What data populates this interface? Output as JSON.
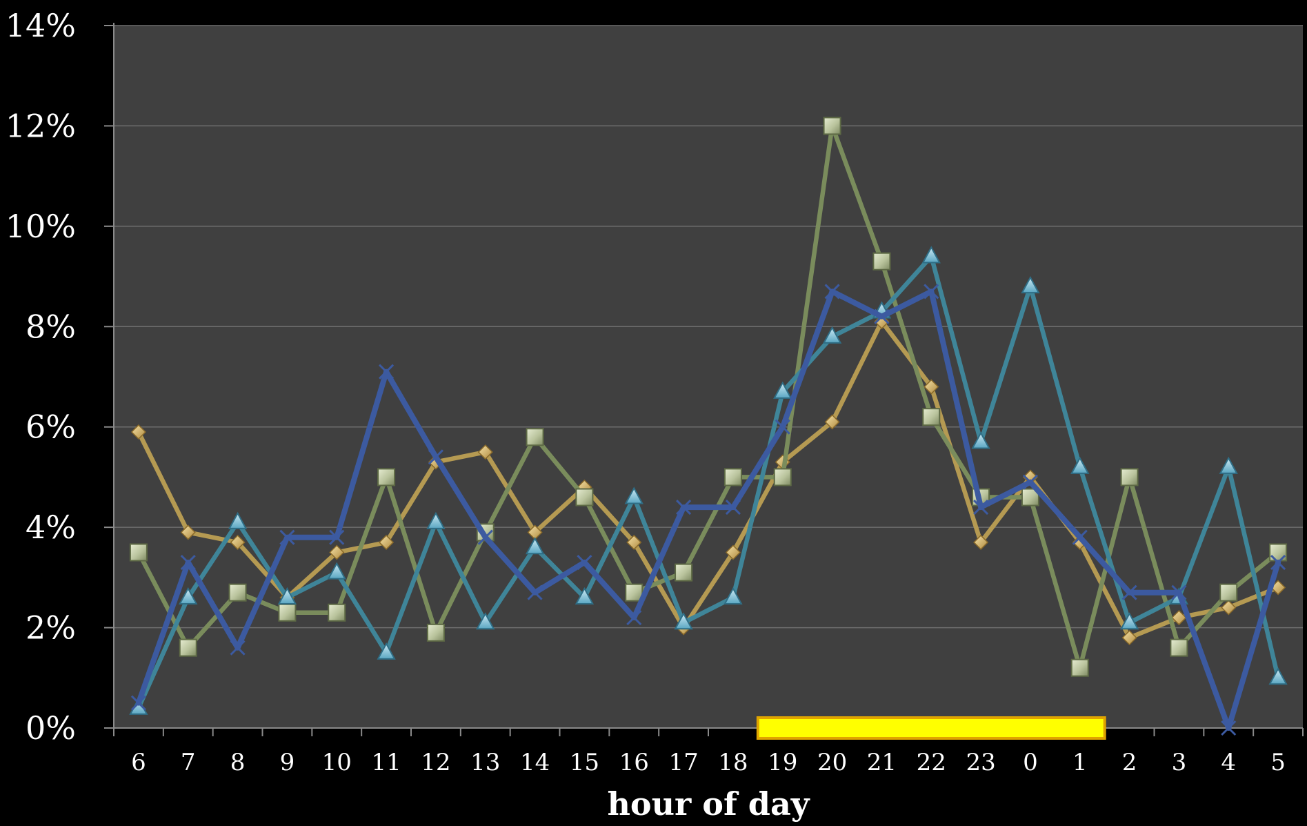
{
  "chart_data": {
    "type": "line",
    "title": "",
    "xlabel": "hour of day",
    "ylabel": "",
    "categories": [
      "6",
      "7",
      "8",
      "9",
      "10",
      "11",
      "12",
      "13",
      "14",
      "15",
      "16",
      "17",
      "18",
      "19",
      "20",
      "21",
      "22",
      "23",
      "0",
      "1",
      "2",
      "3",
      "4",
      "5"
    ],
    "y_ticks": [
      "0%",
      "2%",
      "4%",
      "6%",
      "8%",
      "10%",
      "12%",
      "14%"
    ],
    "ylim": [
      0,
      14
    ],
    "y_unit": "%",
    "grid": true,
    "legend": "none",
    "plot_background": "#404040",
    "series": [
      {
        "color": "#b59a52",
        "marker": "diamond",
        "values": [
          5.9,
          3.9,
          3.7,
          2.6,
          3.5,
          3.7,
          5.3,
          5.5,
          3.9,
          4.8,
          3.7,
          2.0,
          3.5,
          5.3,
          6.1,
          8.1,
          6.8,
          3.7,
          5.0,
          3.7,
          1.8,
          2.2,
          2.4,
          2.8
        ]
      },
      {
        "color": "#7a8c5c",
        "marker": "square",
        "values": [
          3.5,
          1.6,
          2.7,
          2.3,
          2.3,
          5.0,
          1.9,
          3.9,
          5.8,
          4.6,
          2.7,
          3.1,
          5.0,
          5.0,
          12.0,
          9.3,
          6.2,
          4.6,
          4.6,
          1.2,
          5.0,
          1.6,
          2.7,
          3.5
        ]
      },
      {
        "color": "#3f8599",
        "marker": "triangle",
        "values": [
          0.4,
          2.6,
          4.1,
          2.6,
          3.1,
          1.5,
          4.1,
          2.1,
          3.6,
          2.6,
          4.6,
          2.1,
          2.6,
          6.7,
          7.8,
          8.3,
          9.4,
          5.7,
          8.8,
          5.2,
          2.1,
          2.6,
          5.2,
          1.0
        ]
      },
      {
        "color": "#3c5aa0",
        "marker": "x",
        "values": [
          0.5,
          3.3,
          1.6,
          3.8,
          3.8,
          7.1,
          5.4,
          3.8,
          2.7,
          3.3,
          2.2,
          4.4,
          4.4,
          6.0,
          8.7,
          8.2,
          8.7,
          4.4,
          4.9,
          3.8,
          2.7,
          2.7,
          0.0,
          3.3
        ]
      }
    ],
    "highlight_bar": {
      "color": "#ffff00",
      "border_color": "#e0a400",
      "x_from": "18.5",
      "x_to": "1.5"
    }
  }
}
